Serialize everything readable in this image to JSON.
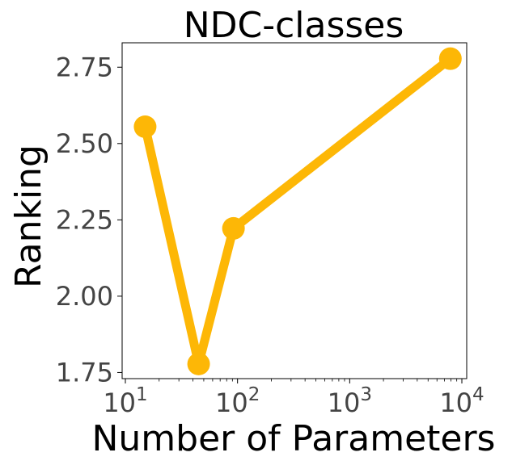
{
  "chart_data": {
    "type": "line",
    "title": "NDC-classes",
    "xlabel": "Number of Parameters",
    "ylabel": "Ranking",
    "xscale": "log",
    "xlim": [
      10,
      10000
    ],
    "ylim": [
      1.73,
      2.83
    ],
    "x_ticks": [
      {
        "value": 10,
        "base": "10",
        "exp": "1"
      },
      {
        "value": 100,
        "base": "10",
        "exp": "2"
      },
      {
        "value": 1000,
        "base": "10",
        "exp": "3"
      },
      {
        "value": 10000,
        "base": "10",
        "exp": "4"
      }
    ],
    "y_ticks": [
      "1.75",
      "2.00",
      "2.25",
      "2.50",
      "2.75"
    ],
    "grid": false,
    "series": [
      {
        "color": "#FDB706",
        "x": [
          15,
          45,
          92,
          7900
        ],
        "y": [
          2.555,
          1.778,
          2.222,
          2.778
        ]
      }
    ]
  }
}
